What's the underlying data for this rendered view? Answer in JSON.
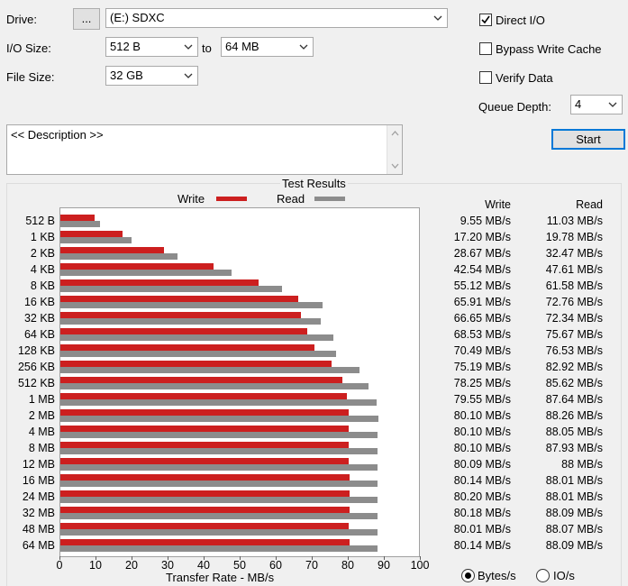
{
  "controls": {
    "drive_label": "Drive:",
    "drive_browse": "...",
    "drive_value": "(E:) SDXC",
    "io_size_label": "I/O Size:",
    "io_size_from": "512 B",
    "io_size_to_label": "to",
    "io_size_to": "64 MB",
    "file_size_label": "File Size:",
    "file_size": "32 GB",
    "direct_io_label": "Direct I/O",
    "direct_io_checked": true,
    "bypass_cache_label": "Bypass Write Cache",
    "bypass_cache_checked": false,
    "verify_label": "Verify Data",
    "verify_checked": false,
    "queue_depth_label": "Queue Depth:",
    "queue_depth": "4",
    "start_label": "Start"
  },
  "description": {
    "text": "<< Description >>"
  },
  "results": {
    "title": "Test Results",
    "legend_write": "Write",
    "legend_read": "Read",
    "col_write": "Write",
    "col_read": "Read",
    "xlabel": "Transfer Rate - MB/s",
    "unit_bytes_label": "Bytes/s",
    "unit_io_label": "IO/s",
    "unit_selected": "bytes"
  },
  "colors": {
    "write": "#cc1f1f",
    "read": "#8c8c8c"
  },
  "chart_data": {
    "type": "bar",
    "orientation": "horizontal",
    "categories": [
      "512 B",
      "1 KB",
      "2 KB",
      "4 KB",
      "8 KB",
      "16 KB",
      "32 KB",
      "64 KB",
      "128 KB",
      "256 KB",
      "512 KB",
      "1 MB",
      "2 MB",
      "4 MB",
      "8 MB",
      "12 MB",
      "16 MB",
      "24 MB",
      "32 MB",
      "48 MB",
      "64 MB"
    ],
    "series": [
      {
        "name": "Write",
        "values": [
          9.55,
          17.2,
          28.67,
          42.54,
          55.12,
          65.91,
          66.65,
          68.53,
          70.49,
          75.19,
          78.25,
          79.55,
          80.1,
          80.1,
          80.1,
          80.09,
          80.14,
          80.2,
          80.18,
          80.01,
          80.14
        ]
      },
      {
        "name": "Read",
        "values": [
          11.03,
          19.78,
          32.47,
          47.61,
          61.58,
          72.76,
          72.34,
          75.67,
          76.53,
          82.92,
          85.62,
          87.64,
          88.26,
          88.05,
          87.93,
          88,
          88.01,
          88.01,
          88.09,
          88.07,
          88.09
        ]
      }
    ],
    "write_labels": [
      "9.55 MB/s",
      "17.20 MB/s",
      "28.67 MB/s",
      "42.54 MB/s",
      "55.12 MB/s",
      "65.91 MB/s",
      "66.65 MB/s",
      "68.53 MB/s",
      "70.49 MB/s",
      "75.19 MB/s",
      "78.25 MB/s",
      "79.55 MB/s",
      "80.10 MB/s",
      "80.10 MB/s",
      "80.10 MB/s",
      "80.09 MB/s",
      "80.14 MB/s",
      "80.20 MB/s",
      "80.18 MB/s",
      "80.01 MB/s",
      "80.14 MB/s"
    ],
    "read_labels": [
      "11.03 MB/s",
      "19.78 MB/s",
      "32.47 MB/s",
      "47.61 MB/s",
      "61.58 MB/s",
      "72.76 MB/s",
      "72.34 MB/s",
      "75.67 MB/s",
      "76.53 MB/s",
      "82.92 MB/s",
      "85.62 MB/s",
      "87.64 MB/s",
      "88.26 MB/s",
      "88.05 MB/s",
      "87.93 MB/s",
      "88 MB/s",
      "88.01 MB/s",
      "88.01 MB/s",
      "88.09 MB/s",
      "88.07 MB/s",
      "88.09 MB/s"
    ],
    "xticks": [
      "0",
      "10",
      "20",
      "30",
      "40",
      "50",
      "60",
      "70",
      "80",
      "90",
      "100"
    ],
    "xlim": [
      0,
      100
    ],
    "xlabel": "Transfer Rate - MB/s",
    "legend": "top-center",
    "grid": false
  }
}
